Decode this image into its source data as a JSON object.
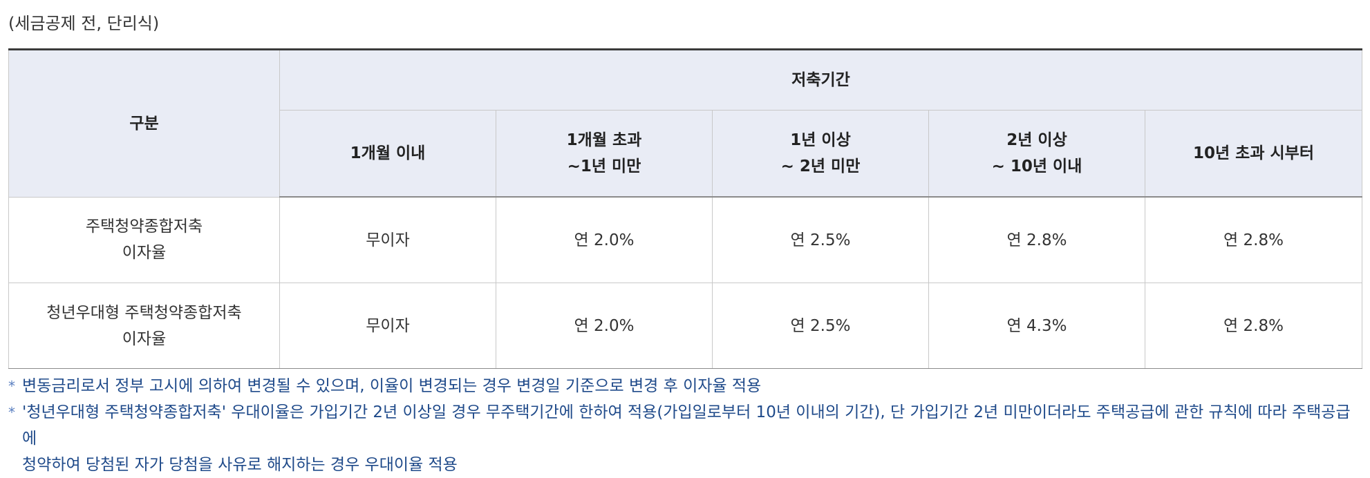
{
  "caption": "(세금공제 전, 단리식)",
  "table": {
    "corner_header": "구분",
    "group_header": "저축기간",
    "period_headers": [
      [
        "1개월 이내"
      ],
      [
        "1개월 초과",
        "~1년 미만"
      ],
      [
        "1년 이상",
        "~ 2년 미만"
      ],
      [
        "2년 이상",
        "~ 10년 이내"
      ],
      [
        "10년 초과 시부터"
      ]
    ],
    "rows": [
      {
        "label": [
          "주택청약종합저축",
          "이자율"
        ],
        "values": [
          "무이자",
          "연 2.0%",
          "연 2.5%",
          "연 2.8%",
          "연 2.8%"
        ]
      },
      {
        "label": [
          "청년우대형 주택청약종합저축",
          "이자율"
        ],
        "values": [
          "무이자",
          "연 2.0%",
          "연 2.5%",
          "연 4.3%",
          "연 2.8%"
        ]
      }
    ]
  },
  "notes": {
    "marker": "*",
    "items": [
      [
        "변동금리로서 정부 고시에 의하여 변경될 수 있으며, 이율이 변경되는 경우 변경일 기준으로 변경 후 이자율 적용"
      ],
      [
        "'청년우대형 주택청약종합저축' 우대이율은 가입기간 2년 이상일 경우 무주택기간에 한하여 적용(가입일로부터 10년 이내의 기간), 단 가입기간 2년 미만이더라도 주택공급에 관한 규칙에 따라 주택공급에",
        "청약하여 당첨된 자가 당첨을 사유로 해지하는 경우 우대이율 적용"
      ]
    ]
  }
}
